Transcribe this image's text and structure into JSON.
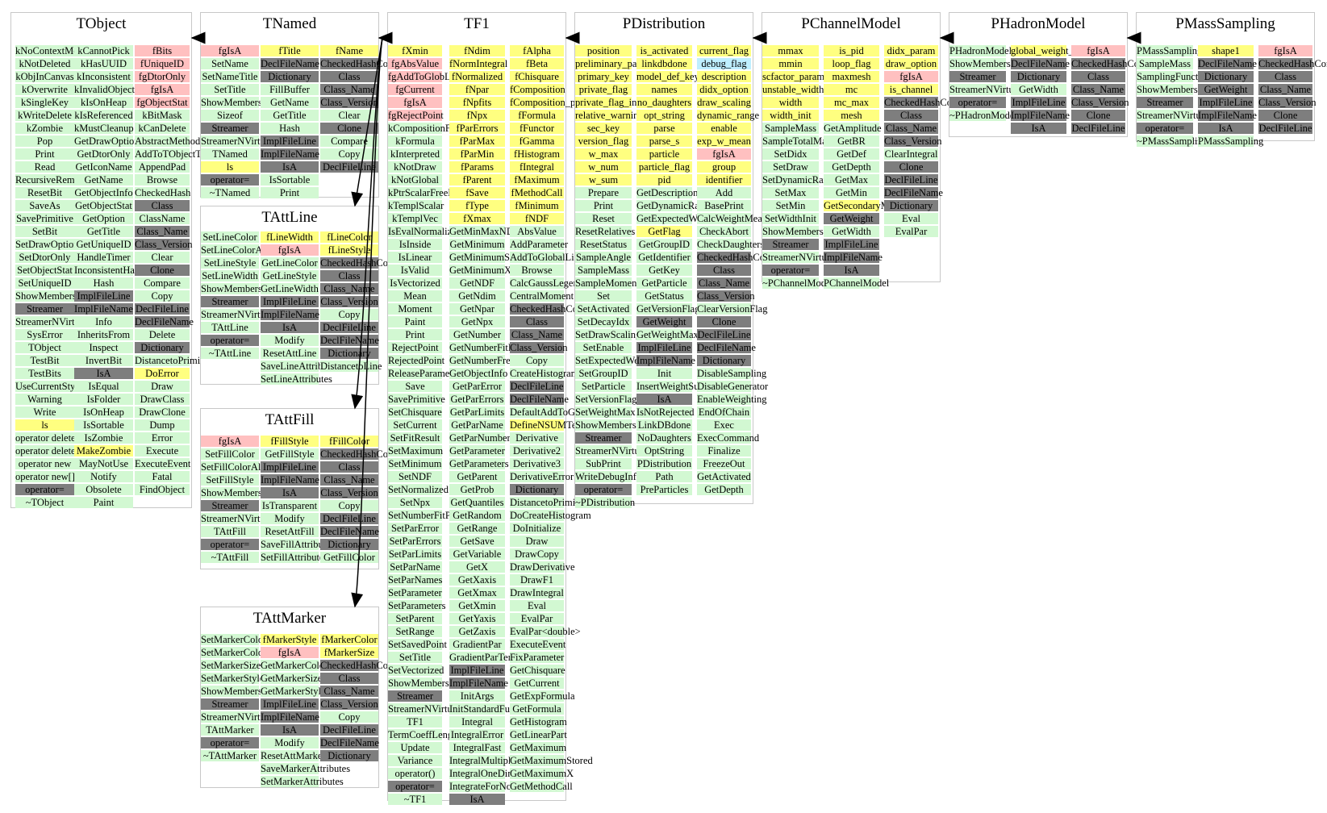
{
  "classes": {
    "TObject": {
      "title": "TObject",
      "columns": [
        [
          "kNoContextMenu",
          "kNotDeleted",
          "kObjInCanvas",
          "kOverwrite",
          "kSingleKey",
          "kWriteDelete",
          "kZombie",
          "Pop",
          "Print",
          "Read",
          "RecursiveRemove",
          "ResetBit",
          "SaveAs",
          "SavePrimitive",
          "SetBit",
          "SetDrawOption",
          "SetDtorOnly",
          "SetObjectStat",
          "SetUniqueID",
          "ShowMembers",
          "Streamer",
          "StreamerNVirtual",
          "SysError",
          "TObject",
          "TestBit",
          "TestBits",
          "UseCurrentStyle",
          "Warning",
          "Write",
          "ls",
          "operator delete",
          "operator delete[]",
          "operator new",
          "operator new[]",
          "operator=",
          "~TObject"
        ],
        [
          "kCannotPick",
          "kHasUUID",
          "kInconsistent",
          "kInvalidObject",
          "kIsOnHeap",
          "kIsReferenced",
          "kMustCleanup",
          "GetDrawOption",
          "GetDtorOnly",
          "GetIconName",
          "GetName",
          "GetObjectInfo",
          "GetObjectStat",
          "GetOption",
          "GetTitle",
          "GetUniqueID",
          "HandleTimer",
          "InconsistentHash",
          "Hash",
          "ImplFileLine",
          "ImplFileName",
          "Info",
          "InheritsFrom",
          "Inspect",
          "InvertBit",
          "IsA",
          "IsEqual",
          "IsFolder",
          "IsOnHeap",
          "IsSortable",
          "IsZombie",
          "MakeZombie",
          "MayNotUse",
          "Notify",
          "Obsolete",
          "Paint"
        ],
        [
          "fBits",
          "fUniqueID",
          "fgDtorOnly",
          "fgIsA",
          "fgObjectStat",
          "kBitMask",
          "kCanDelete",
          "AbstractMethod",
          "AddToTObjectTable",
          "AppendPad",
          "Browse",
          "CheckedHash",
          "Class",
          "ClassName",
          "Class_Name",
          "Class_Version",
          "Clear",
          "Clone",
          "Compare",
          "Copy",
          "DeclFileLine",
          "DeclFileName",
          "Delete",
          "Dictionary",
          "DistancetoPrimitive",
          "DoError",
          "Draw",
          "DrawClass",
          "DrawClone",
          "Dump",
          "Error",
          "Execute",
          "ExecuteEvent",
          "Fatal",
          "FindObject"
        ]
      ]
    },
    "TNamed": {
      "title": "TNamed",
      "columns": [
        [
          "fgIsA",
          "SetName",
          "SetNameTitle",
          "SetTitle",
          "ShowMembers",
          "Sizeof",
          "Streamer",
          "StreamerNVirtual",
          "TNamed",
          "ls",
          "operator=",
          "~TNamed"
        ],
        [
          "fTitle",
          "DeclFileName",
          "Dictionary",
          "FillBuffer",
          "GetName",
          "GetTitle",
          "Hash",
          "ImplFileLine",
          "ImplFileName",
          "IsA",
          "IsSortable",
          "Print"
        ],
        [
          "fName",
          "CheckedHashConsistency",
          "Class",
          "Class_Name",
          "Class_Version",
          "Clear",
          "Clone",
          "Compare",
          "Copy",
          "DeclFileLine"
        ]
      ]
    },
    "TAttLine": {
      "title": "TAttLine",
      "columns": [
        [
          "SetLineColor",
          "SetLineColorAlpha",
          "SetLineStyle",
          "SetLineWidth",
          "ShowMembers",
          "Streamer",
          "StreamerNVirtual",
          "TAttLine",
          "operator=",
          "~TAttLine"
        ],
        [
          "fLineWidth",
          "fgIsA",
          "GetLineColor",
          "GetLineStyle",
          "GetLineWidth",
          "ImplFileLine",
          "ImplFileName",
          "IsA",
          "Modify",
          "ResetAttLine",
          "SaveLineAttributes",
          "SetLineAttributes"
        ],
        [
          "fLineColor",
          "fLineStyle",
          "CheckedHashConsistency",
          "Class",
          "Class_Name",
          "Class_Version",
          "Copy",
          "DeclFileLine",
          "DeclFileName",
          "Dictionary",
          "DistancetoLine"
        ]
      ]
    },
    "TAttFill": {
      "title": "TAttFill",
      "columns": [
        [
          "fgIsA",
          "SetFillColor",
          "SetFillColorAlpha",
          "SetFillStyle",
          "ShowMembers",
          "Streamer",
          "StreamerNVirtual",
          "TAttFill",
          "operator=",
          "~TAttFill"
        ],
        [
          "fFillStyle",
          "GetFillStyle",
          "ImplFileLine",
          "ImplFileName",
          "IsA",
          "IsTransparent",
          "Modify",
          "ResetAttFill",
          "SaveFillAttributes",
          "SetFillAttributes"
        ],
        [
          "fFillColor",
          "CheckedHashConsistency",
          "Class",
          "Class_Name",
          "Class_Version",
          "Copy",
          "DeclFileLine",
          "DeclFileName",
          "Dictionary",
          "GetFillColor"
        ]
      ]
    },
    "TAttMarker": {
      "title": "TAttMarker",
      "columns": [
        [
          "SetMarkerColor",
          "SetMarkerColorAlpha",
          "SetMarkerSize",
          "SetMarkerStyle",
          "ShowMembers",
          "Streamer",
          "StreamerNVirtual",
          "TAttMarker",
          "operator=",
          "~TAttMarker"
        ],
        [
          "fMarkerStyle",
          "fgIsA",
          "GetMarkerColor",
          "GetMarkerSize",
          "GetMarkerStyle",
          "ImplFileLine",
          "ImplFileName",
          "IsA",
          "Modify",
          "ResetAttMarker",
          "SaveMarkerAttributes",
          "SetMarkerAttributes"
        ],
        [
          "fMarkerColor",
          "fMarkerSize",
          "CheckedHashConsistency",
          "Class",
          "Class_Name",
          "Class_Version",
          "Copy",
          "DeclFileLine",
          "DeclFileName",
          "Dictionary"
        ]
      ]
    },
    "TF1": {
      "title": "TF1",
      "columns": [
        [
          "fXmin",
          "fgAbsValue",
          "fgAddToGlobList",
          "fgCurrent",
          "fgIsA",
          "fgRejectPoint",
          "kCompositionFcn",
          "kFormula",
          "kInterpreted",
          "kNotDraw",
          "kNotGlobal",
          "kPtrScalarFreeFcn",
          "kTemplScalar",
          "kTemplVec",
          "IsEvalNormalized",
          "IsInside",
          "IsLinear",
          "IsValid",
          "IsVectorized",
          "Mean",
          "Moment",
          "Paint",
          "Print",
          "RejectPoint",
          "RejectedPoint",
          "ReleaseParameter",
          "Save",
          "SavePrimitive",
          "SetChisquare",
          "SetCurrent",
          "SetFitResult",
          "SetMaximum",
          "SetMinimum",
          "SetNDF",
          "SetNormalized",
          "SetNpx",
          "SetNumberFitPoints",
          "SetParError",
          "SetParErrors",
          "SetParLimits",
          "SetParName",
          "SetParNames",
          "SetParameter",
          "SetParameters",
          "SetParent",
          "SetRange",
          "SetSavedPoint",
          "SetTitle",
          "SetVectorized",
          "ShowMembers",
          "Streamer",
          "StreamerNVirtual",
          "TF1",
          "TermCoeffLength",
          "Update",
          "Variance",
          "operator()",
          "operator=",
          "~TF1"
        ],
        [
          "fNdim",
          "fNormIntegral",
          "fNormalized",
          "fNpar",
          "fNpfits",
          "fNpx",
          "fParErrors",
          "fParMax",
          "fParMin",
          "fParams",
          "fParent",
          "fSave",
          "fType",
          "fXmax",
          "GetMinMaxNDim",
          "GetMinimum",
          "GetMinimumStored",
          "GetMinimumX",
          "GetNDF",
          "GetNdim",
          "GetNpar",
          "GetNpx",
          "GetNumber",
          "GetNumberFitPoints",
          "GetNumberFreeParameters",
          "GetObjectInfo",
          "GetParError",
          "GetParErrors",
          "GetParLimits",
          "GetParName",
          "GetParNumber",
          "GetParameter",
          "GetParameters",
          "GetParent",
          "GetProb",
          "GetQuantiles",
          "GetRandom",
          "GetRange",
          "GetSave",
          "GetVariable",
          "GetX",
          "GetXaxis",
          "GetXmax",
          "GetXmin",
          "GetYaxis",
          "GetZaxis",
          "GradientPar",
          "GradientParTempl<double>",
          "ImplFileLine",
          "ImplFileName",
          "InitArgs",
          "InitStandardFunctions",
          "Integral",
          "IntegralError",
          "IntegralFast",
          "IntegralMultiple",
          "IntegralOneDim",
          "IntegrateForNormalization",
          "IsA"
        ],
        [
          "fAlpha",
          "fBeta",
          "fChisquare",
          "fComposition",
          "fComposition_ptr",
          "fFormula",
          "fFunctor",
          "fGamma",
          "fHistogram",
          "fIntegral",
          "fMaximum",
          "fMethodCall",
          "fMinimum",
          "fNDF",
          "AbsValue",
          "AddParameter",
          "AddToGlobalList",
          "Browse",
          "CalcGaussLegendreSamplingPoints",
          "CentralMoment",
          "CheckedHashConsistency",
          "Class",
          "Class_Name",
          "Class_Version",
          "Copy",
          "CreateHistogram",
          "DeclFileLine",
          "DeclFileName",
          "DefaultAddToGlobalList",
          "DefineNSUMTerm",
          "Derivative",
          "Derivative2",
          "Derivative3",
          "DerivativeError",
          "Dictionary",
          "DistancetoPrimitive",
          "DoCreateHistogram",
          "DoInitialize",
          "Draw",
          "DrawCopy",
          "DrawDerivative",
          "DrawF1",
          "DrawIntegral",
          "Eval",
          "EvalPar",
          "EvalPar<double>",
          "ExecuteEvent",
          "FixParameter",
          "GetChisquare",
          "GetCurrent",
          "GetExpFormula",
          "GetFormula",
          "GetHistogram",
          "GetLinearPart",
          "GetMaximum",
          "GetMaximumStored",
          "GetMaximumX",
          "GetMethodCall"
        ]
      ]
    },
    "PDistribution": {
      "title": "PDistribution",
      "columns": [
        [
          "position",
          "preliminary_particles",
          "primary_key",
          "private_flag",
          "private_flag_int",
          "relative_warning",
          "sec_key",
          "version_flag",
          "w_max",
          "w_num",
          "w_sum",
          "Prepare",
          "Print",
          "Reset",
          "ResetRelatives",
          "ResetStatus",
          "SampleAngle",
          "SampleMass",
          "SampleMomentum",
          "Set",
          "SetActivated",
          "SetDecayIdx",
          "SetDrawScaling",
          "SetEnable",
          "SetExpectedWeightMean",
          "SetGroupID",
          "SetParticle",
          "SetVersionFlag",
          "SetWeightMax",
          "ShowMembers",
          "Streamer",
          "StreamerNVirtual",
          "SubPrint",
          "WriteDebugInfo",
          "operator=",
          "~PDistribution"
        ],
        [
          "is_activated",
          "linkdbdone",
          "model_def_key",
          "names",
          "no_daughters",
          "opt_string",
          "parse",
          "parse_s",
          "particle",
          "particle_flag",
          "pid",
          "GetDescription",
          "GetDynamicRange",
          "GetExpectedWeightMean",
          "GetFlag",
          "GetGroupID",
          "GetIdentifier",
          "GetKey",
          "GetParticle",
          "GetStatus",
          "GetVersionFlag",
          "GetWeight",
          "GetWeightMax",
          "ImplFileLine",
          "ImplFileName",
          "Init",
          "InsertWeightSum",
          "IsA",
          "IsNotRejected",
          "LinkDBdone",
          "NoDaughters",
          "OptString",
          "PDistribution",
          "Path",
          "PreParticles"
        ],
        [
          "current_flag",
          "debug_flag",
          "description",
          "didx_option",
          "draw_scaling",
          "dynamic_range",
          "enable",
          "exp_w_mean",
          "fgIsA",
          "group",
          "identifier",
          "Add",
          "BasePrint",
          "CalcWeightMean",
          "CheckAbort",
          "CheckDaughters",
          "CheckedHashConsistency",
          "Class",
          "Class_Name",
          "Class_Version",
          "ClearVersionFlag",
          "Clone",
          "DeclFileLine",
          "DeclFileName",
          "Dictionary",
          "DisableSampling",
          "DisableGenerator",
          "EnableWeighting",
          "EndOfChain",
          "Exec",
          "ExecCommand",
          "Finalize",
          "FreezeOut",
          "GetActivated",
          "GetDepth"
        ]
      ]
    },
    "PChannelModel": {
      "title": "PChannelModel",
      "columns": [
        [
          "mmax",
          "mmin",
          "scfactor_param",
          "unstable_width",
          "width",
          "width_init",
          "SampleMass",
          "SampleTotalMass",
          "SetDidx",
          "SetDraw",
          "SetDynamicRange",
          "SetMax",
          "SetMin",
          "SetWidthInit",
          "ShowMembers",
          "Streamer",
          "StreamerNVirtual",
          "operator=",
          "~PChannelModel"
        ],
        [
          "is_pid",
          "loop_flag",
          "maxmesh",
          "mc",
          "mc_max",
          "mesh",
          "GetAmplitude",
          "GetBR",
          "GetDef",
          "GetDepth",
          "GetMax",
          "GetMin",
          "GetSecondaryModel",
          "GetWeight",
          "GetWidth",
          "ImplFileLine",
          "ImplFileName",
          "IsA",
          "PChannelModel"
        ],
        [
          "didx_param",
          "draw_option",
          "fgIsA",
          "is_channel",
          "CheckedHashConsistency",
          "Class",
          "Class_Name",
          "Class_Version",
          "ClearIntegral",
          "Clone",
          "DeclFileLine",
          "DeclFileName",
          "Dictionary",
          "Eval",
          "EvalPar"
        ]
      ]
    },
    "PHadronModel": {
      "title": "PHadronModel",
      "columns": [
        [
          "PHadronModel",
          "ShowMembers",
          "Streamer",
          "StreamerNVirtual",
          "operator=",
          "~PHadronModel"
        ],
        [
          "global_weight_scaling",
          "DeclFileName",
          "Dictionary",
          "GetWidth",
          "ImplFileLine",
          "ImplFileName",
          "IsA"
        ],
        [
          "fgIsA",
          "CheckedHashConsistency",
          "Class",
          "Class_Name",
          "Class_Version",
          "Clone",
          "DeclFileLine"
        ]
      ]
    },
    "PMassSampling": {
      "title": "PMassSampling",
      "columns": [
        [
          "PMassSampling",
          "SampleMass",
          "SamplingFunction",
          "ShowMembers",
          "Streamer",
          "StreamerNVirtual",
          "operator=",
          "~PMassSampling"
        ],
        [
          "shape1",
          "DeclFileName",
          "Dictionary",
          "GetWeight",
          "ImplFileLine",
          "ImplFileName",
          "IsA",
          "PMassSampling"
        ],
        [
          "fgIsA",
          "CheckedHashConsistency",
          "Class",
          "Class_Name",
          "Class_Version",
          "Clone",
          "DeclFileLine"
        ]
      ]
    }
  },
  "inheritance": [
    [
      "TNamed",
      "TObject"
    ],
    [
      "TF1",
      "TNamed"
    ],
    [
      "TF1",
      "TAttLine"
    ],
    [
      "TF1",
      "TAttFill"
    ],
    [
      "TF1",
      "TAttMarker"
    ],
    [
      "PDistribution",
      "TF1"
    ],
    [
      "PChannelModel",
      "PDistribution"
    ],
    [
      "PHadronModel",
      "PChannelModel"
    ],
    [
      "PMassSampling",
      "PHadronModel"
    ]
  ],
  "colors": {
    "method": "#d2f8d2",
    "data_member": "#ffff80",
    "static_member": "#ffc0c0",
    "inherited_method": "#7e7e7e",
    "debug_flag": "#bfefff",
    "box_border": "#c8c8c8",
    "arrow": "#000000"
  }
}
